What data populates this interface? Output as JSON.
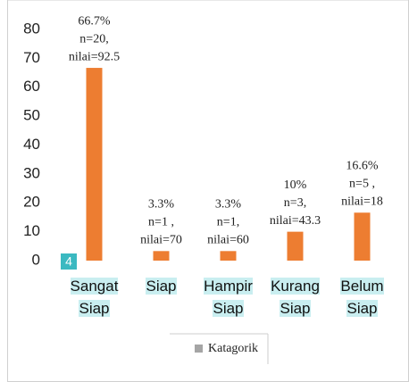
{
  "chart_data": {
    "type": "bar",
    "categories": [
      "Sangat Siap",
      "Siap",
      "Hampir Siap",
      "Kurang Siap",
      "Belum Siap"
    ],
    "series": [
      {
        "name": "Katagorik",
        "color": "#ed7d31",
        "values": [
          66.7,
          3.3,
          3.3,
          10,
          16.6
        ],
        "value_labels": [
          "66.7%",
          "3.3%",
          "3.3%",
          "10%",
          "16.6%"
        ]
      }
    ],
    "annotations": [
      [
        "n=20,",
        "nilai=92.5"
      ],
      [
        "n=1 ,",
        "nilai=70"
      ],
      [
        "n=1,",
        "nilai=60"
      ],
      [
        "n=3,",
        "nilai=43.3"
      ],
      [
        "n=5 ,",
        "nilai=18"
      ]
    ],
    "legend_color": "#a5a5a5",
    "badge": "4",
    "ylim": [
      0,
      80
    ],
    "yticks": [
      0,
      10,
      20,
      30,
      40,
      50,
      60,
      70,
      80
    ],
    "grid": false
  }
}
